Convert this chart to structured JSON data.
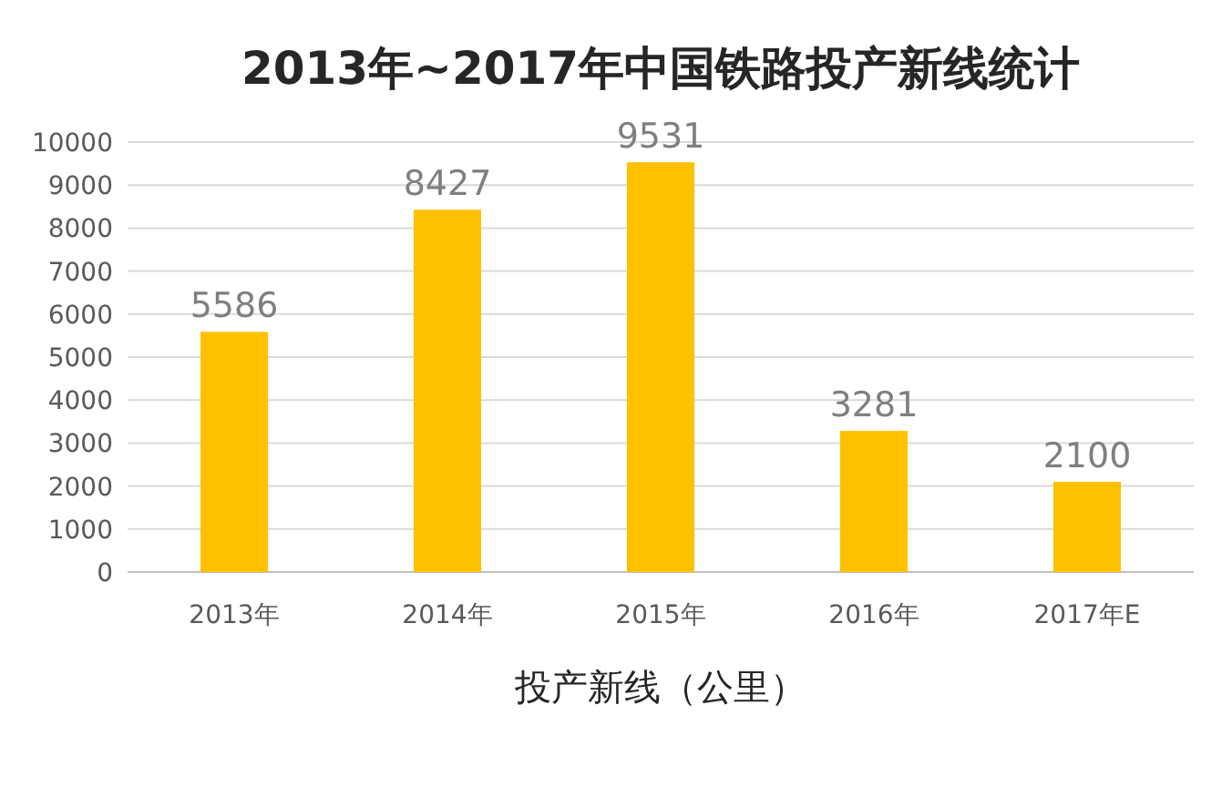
{
  "chart_data": {
    "type": "bar",
    "title": "2013年~2017年中国铁路投产新线统计",
    "xlabel": "投产新线（公里）",
    "categories": [
      "2013年",
      "2014年",
      "2015年",
      "2016年",
      "2017年E"
    ],
    "values": [
      5586,
      8427,
      9531,
      3281,
      2100
    ],
    "color": "#ffc000",
    "ylim": [
      0,
      10000
    ],
    "yticks": [
      0,
      1000,
      2000,
      3000,
      4000,
      5000,
      6000,
      7000,
      8000,
      9000,
      10000
    ],
    "grid": "y",
    "data_labels": true
  }
}
